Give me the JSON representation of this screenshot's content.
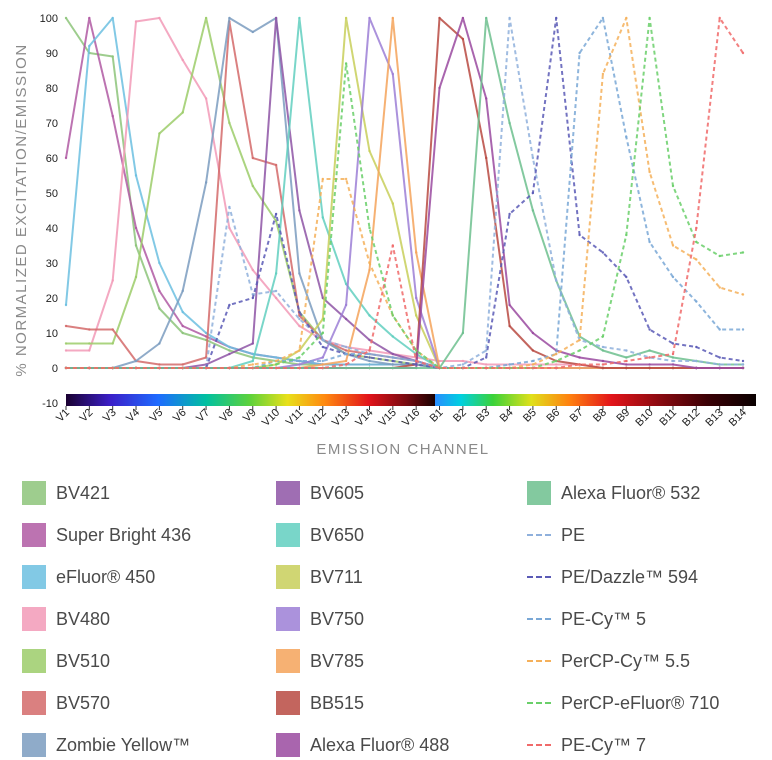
{
  "chart_data": {
    "type": "line",
    "ylabel": "% NORMALIZED EXCITATION/EMISSION",
    "xlabel": "EMISSION CHANNEL",
    "ylim": [
      -10,
      100
    ],
    "yticks": [
      -10,
      0,
      10,
      20,
      30,
      40,
      50,
      60,
      70,
      80,
      90,
      100
    ],
    "categories": [
      "V1",
      "V2",
      "V3",
      "V4",
      "V5",
      "V6",
      "V7",
      "V8",
      "V9",
      "V10",
      "V11",
      "V12",
      "V13",
      "V14",
      "V15",
      "V16",
      "B1",
      "B2",
      "B3",
      "B4",
      "B5",
      "B6",
      "B7",
      "B8",
      "B9",
      "B10",
      "B11",
      "B12",
      "B13",
      "B14"
    ],
    "series": [
      {
        "name": "BV421",
        "color": "#8dc47a",
        "style": "solid",
        "values": [
          100,
          90,
          89,
          35,
          17,
          10,
          8,
          5,
          3,
          2,
          1,
          1,
          1,
          1,
          1,
          1,
          0,
          0,
          0,
          0,
          0,
          0,
          0,
          0,
          0,
          0,
          0,
          0,
          0,
          0
        ]
      },
      {
        "name": "Super Bright 436",
        "color": "#b05aa3",
        "style": "solid",
        "values": [
          60,
          100,
          72,
          40,
          22,
          12,
          9,
          6,
          4,
          3,
          2,
          1,
          1,
          1,
          1,
          1,
          0,
          0,
          0,
          0,
          0,
          0,
          0,
          0,
          0,
          0,
          0,
          0,
          0,
          0
        ]
      },
      {
        "name": "eFluor® 450",
        "color": "#6cbfe0",
        "style": "solid",
        "values": [
          18,
          92,
          100,
          55,
          30,
          16,
          10,
          6,
          4,
          3,
          2,
          1,
          1,
          1,
          1,
          1,
          0,
          0,
          0,
          0,
          0,
          0,
          0,
          0,
          0,
          0,
          0,
          0,
          0,
          0
        ]
      },
      {
        "name": "BV480",
        "color": "#f29ab7",
        "style": "solid",
        "values": [
          5,
          5,
          25,
          99,
          100,
          88,
          77,
          40,
          28,
          20,
          12,
          8,
          6,
          5,
          4,
          3,
          2,
          2,
          1,
          1,
          1,
          1,
          1,
          0,
          0,
          0,
          0,
          0,
          0,
          0
        ]
      },
      {
        "name": "BV510",
        "color": "#9ccc6a",
        "style": "solid",
        "values": [
          7,
          7,
          7,
          26,
          67,
          73,
          100,
          70,
          52,
          42,
          16,
          8,
          4,
          3,
          2,
          1,
          0,
          0,
          0,
          0,
          0,
          0,
          0,
          0,
          0,
          0,
          0,
          0,
          0,
          0
        ]
      },
      {
        "name": "BV570",
        "color": "#d46a6a",
        "style": "solid",
        "values": [
          12,
          11,
          11,
          2,
          1,
          1,
          3,
          99,
          60,
          58,
          15,
          8,
          5,
          4,
          3,
          2,
          0,
          0,
          0,
          0,
          0,
          0,
          0,
          0,
          0,
          0,
          0,
          0,
          0,
          0
        ]
      },
      {
        "name": "Zombie Yellow™",
        "color": "#7b9cc0",
        "style": "solid",
        "values": [
          0,
          0,
          0,
          2,
          7,
          22,
          53,
          100,
          96,
          100,
          27,
          8,
          4,
          2,
          1,
          1,
          0,
          0,
          0,
          0,
          0,
          0,
          0,
          0,
          0,
          0,
          0,
          0,
          0,
          0
        ]
      },
      {
        "name": "BV605",
        "color": "#8e55a6",
        "style": "solid",
        "values": [
          0,
          0,
          0,
          0,
          0,
          0,
          1,
          4,
          7,
          100,
          45,
          20,
          14,
          8,
          4,
          2,
          0,
          0,
          0,
          0,
          0,
          0,
          0,
          0,
          0,
          0,
          0,
          0,
          0,
          0
        ]
      },
      {
        "name": "BV650",
        "color": "#62cfc0",
        "style": "solid",
        "values": [
          0,
          0,
          0,
          0,
          0,
          0,
          0,
          0,
          2,
          27,
          100,
          43,
          24,
          15,
          9,
          4,
          0,
          0,
          0,
          0,
          0,
          0,
          0,
          0,
          0,
          0,
          0,
          0,
          0,
          0
        ]
      },
      {
        "name": "BV711",
        "color": "#c8cf5a",
        "style": "solid",
        "values": [
          0,
          0,
          0,
          0,
          0,
          0,
          0,
          0,
          0,
          1,
          5,
          14,
          100,
          62,
          47,
          15,
          0,
          0,
          0,
          0,
          0,
          0,
          0,
          0,
          0,
          0,
          0,
          0,
          0,
          0
        ]
      },
      {
        "name": "BV750",
        "color": "#9c7fd6",
        "style": "solid",
        "values": [
          0,
          0,
          0,
          0,
          0,
          0,
          0,
          0,
          0,
          0,
          1,
          3,
          18,
          100,
          84,
          20,
          0,
          0,
          0,
          0,
          0,
          0,
          0,
          0,
          0,
          0,
          0,
          0,
          0,
          0
        ]
      },
      {
        "name": "BV785",
        "color": "#f5a35b",
        "style": "solid",
        "values": [
          0,
          0,
          0,
          0,
          0,
          0,
          0,
          0,
          0,
          0,
          0,
          1,
          2,
          28,
          100,
          33,
          0,
          0,
          0,
          0,
          0,
          0,
          0,
          0,
          0,
          0,
          0,
          0,
          0,
          0
        ]
      },
      {
        "name": "BB515",
        "color": "#b84a42",
        "style": "solid",
        "values": [
          0,
          0,
          0,
          0,
          0,
          0,
          0,
          0,
          0,
          0,
          0,
          0,
          0,
          0,
          0,
          1,
          100,
          94,
          60,
          12,
          5,
          2,
          1,
          0,
          0,
          0,
          0,
          0,
          0,
          0
        ]
      },
      {
        "name": "Alexa Fluor® 488",
        "color": "#9a4aa0",
        "style": "solid",
        "values": [
          0,
          0,
          0,
          0,
          0,
          0,
          0,
          0,
          0,
          0,
          0,
          0,
          0,
          0,
          0,
          0,
          80,
          100,
          77,
          18,
          10,
          5,
          3,
          2,
          1,
          1,
          1,
          0,
          0,
          0
        ]
      },
      {
        "name": "Alexa Fluor® 532",
        "color": "#6dbf8e",
        "style": "solid",
        "values": [
          0,
          0,
          0,
          0,
          0,
          0,
          0,
          0,
          0,
          0,
          0,
          0,
          0,
          0,
          0,
          0,
          0,
          10,
          100,
          70,
          45,
          25,
          9,
          5,
          3,
          5,
          3,
          2,
          1,
          1
        ]
      },
      {
        "name": "PE",
        "color": "#8fb0dc",
        "style": "dashed",
        "values": [
          0,
          0,
          0,
          0,
          0,
          0,
          0,
          46,
          21,
          22,
          14,
          8,
          6,
          4,
          3,
          2,
          0,
          1,
          5,
          100,
          60,
          25,
          8,
          6,
          5,
          3,
          2,
          2,
          1,
          1
        ]
      },
      {
        "name": "PE/Dazzle™ 594",
        "color": "#5a5ab6",
        "style": "dashed",
        "values": [
          0,
          0,
          0,
          0,
          0,
          0,
          0,
          18,
          20,
          44,
          16,
          6,
          4,
          3,
          2,
          1,
          0,
          0,
          3,
          44,
          50,
          100,
          38,
          33,
          26,
          11,
          7,
          6,
          3,
          2
        ]
      },
      {
        "name": "PE-Cy™ 5",
        "color": "#7aa8d6",
        "style": "dashed",
        "values": [
          0,
          0,
          0,
          0,
          0,
          0,
          0,
          0,
          0,
          2,
          2,
          2,
          4,
          4,
          3,
          2,
          0,
          0,
          0,
          1,
          2,
          4,
          90,
          100,
          66,
          36,
          26,
          19,
          11,
          11
        ]
      },
      {
        "name": "PerCP-Cy™ 5.5",
        "color": "#f5b05a",
        "style": "dashed",
        "values": [
          0,
          0,
          0,
          0,
          0,
          0,
          0,
          0,
          1,
          2,
          5,
          54,
          54,
          30,
          15,
          5,
          0,
          0,
          0,
          0,
          1,
          4,
          8,
          84,
          100,
          56,
          35,
          31,
          23,
          21
        ]
      },
      {
        "name": "PerCP-eFluor® 710",
        "color": "#6acf6a",
        "style": "dashed",
        "values": [
          0,
          0,
          0,
          0,
          0,
          0,
          0,
          0,
          0,
          1,
          3,
          10,
          87,
          40,
          15,
          5,
          0,
          0,
          0,
          0,
          0,
          2,
          5,
          9,
          38,
          100,
          52,
          36,
          32,
          33
        ]
      },
      {
        "name": "PE-Cy™ 7",
        "color": "#f06a6a",
        "style": "dashed",
        "values": [
          0,
          0,
          0,
          0,
          0,
          0,
          0,
          0,
          0,
          0,
          0,
          0,
          1,
          5,
          35,
          2,
          0,
          0,
          0,
          0,
          0,
          0,
          1,
          1,
          2,
          3,
          4,
          40,
          100,
          90
        ]
      }
    ],
    "grid": false,
    "legend": "bottom"
  }
}
